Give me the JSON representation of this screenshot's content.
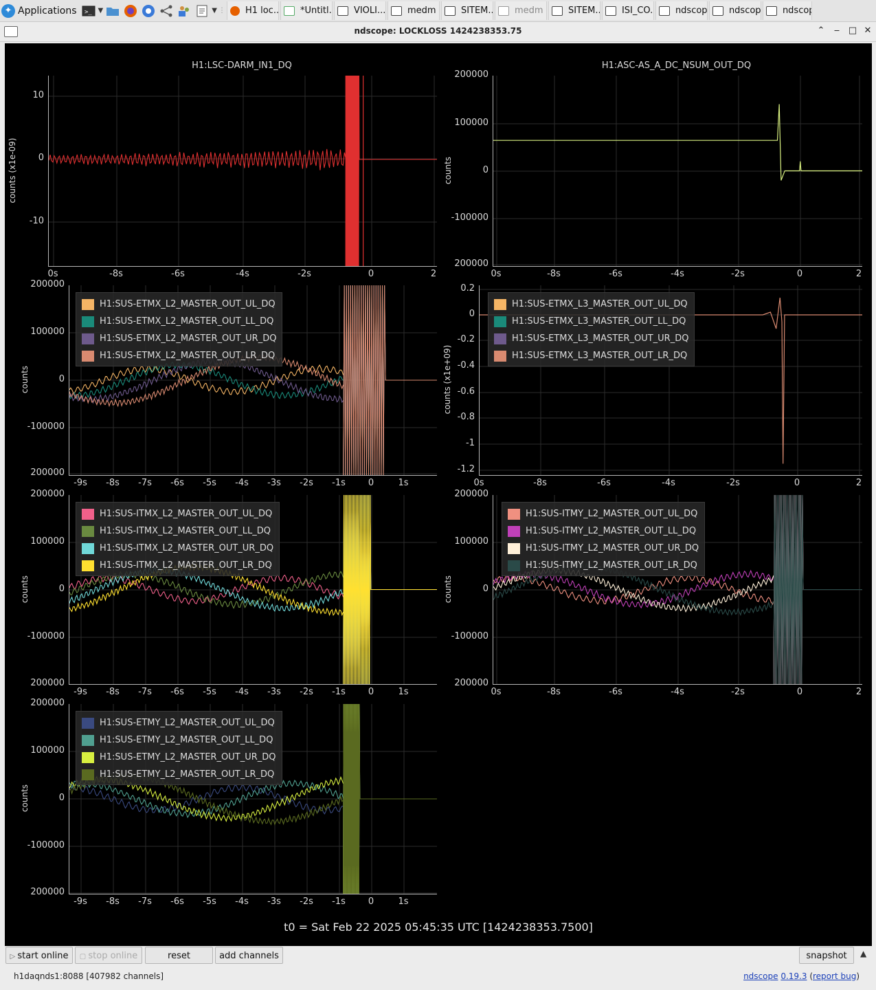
{
  "taskbar": {
    "apps_label": "Applications",
    "tasks": [
      "H1 loc...",
      "*Untitl...",
      "VIOLI...",
      "medm",
      "SITEM...",
      "medm",
      "SITEM...",
      "ISI_CO...",
      "ndscop...",
      "ndscop...",
      "ndscop"
    ]
  },
  "window": {
    "title": "ndscope: LOCKLOSS 1424238353.75"
  },
  "plots": [
    {
      "title": "H1:LSC-DARM_IN1_DQ",
      "ylabel": "counts (x1e-09)",
      "yticks": [
        "10",
        "0",
        "-10"
      ],
      "xticks": [
        "0s",
        "-8s",
        "-6s",
        "-4s",
        "-2s",
        "0",
        "2"
      ],
      "legend": []
    },
    {
      "title": "H1:ASC-AS_A_DC_NSUM_OUT_DQ",
      "ylabel": "counts",
      "yticks": [
        "200000",
        "100000",
        "0",
        "-100000",
        "200000"
      ],
      "xticks": [
        "0s",
        "-8s",
        "-6s",
        "-4s",
        "-2s",
        "0",
        "2"
      ],
      "legend": []
    },
    {
      "title": "",
      "ylabel": "counts",
      "yticks": [
        "200000",
        "100000",
        "0",
        "-100000",
        "200000"
      ],
      "xticks": [
        "-9s",
        "-8s",
        "-7s",
        "-6s",
        "-5s",
        "-4s",
        "-3s",
        "-2s",
        "-1s",
        "0",
        "1s"
      ],
      "legend": [
        {
          "label": "H1:SUS-ETMX_L2_MASTER_OUT_UL_DQ",
          "color": "#f5b565"
        },
        {
          "label": "H1:SUS-ETMX_L2_MASTER_OUT_LL_DQ",
          "color": "#1a8a7a"
        },
        {
          "label": "H1:SUS-ETMX_L2_MASTER_OUT_UR_DQ",
          "color": "#6e5a8c"
        },
        {
          "label": "H1:SUS-ETMX_L2_MASTER_OUT_LR_DQ",
          "color": "#d98a70"
        }
      ]
    },
    {
      "title": "",
      "ylabel": "counts (x1e+09)",
      "yticks": [
        "0.2",
        "0",
        "-0.2",
        "-0.4",
        "-0.6",
        "-0.8",
        "-1",
        "-1.2"
      ],
      "xticks": [
        "0s",
        "-8s",
        "-6s",
        "-4s",
        "-2s",
        "0",
        "2"
      ],
      "legend": [
        {
          "label": "H1:SUS-ETMX_L3_MASTER_OUT_UL_DQ",
          "color": "#f5b565"
        },
        {
          "label": "H1:SUS-ETMX_L3_MASTER_OUT_LL_DQ",
          "color": "#1a8a7a"
        },
        {
          "label": "H1:SUS-ETMX_L3_MASTER_OUT_UR_DQ",
          "color": "#6e5a8c"
        },
        {
          "label": "H1:SUS-ETMX_L3_MASTER_OUT_LR_DQ",
          "color": "#d98a70"
        }
      ]
    },
    {
      "title": "",
      "ylabel": "counts",
      "yticks": [
        "200000",
        "100000",
        "0",
        "-100000",
        "200000"
      ],
      "xticks": [
        "-9s",
        "-8s",
        "-7s",
        "-6s",
        "-5s",
        "-4s",
        "-3s",
        "-2s",
        "-1s",
        "0",
        "1s"
      ],
      "legend": [
        {
          "label": "H1:SUS-ITMX_L2_MASTER_OUT_UL_DQ",
          "color": "#f0608a"
        },
        {
          "label": "H1:SUS-ITMX_L2_MASTER_OUT_LL_DQ",
          "color": "#6a8a40"
        },
        {
          "label": "H1:SUS-ITMX_L2_MASTER_OUT_UR_DQ",
          "color": "#70d8d8"
        },
        {
          "label": "H1:SUS-ITMX_L2_MASTER_OUT_LR_DQ",
          "color": "#ffe030"
        }
      ]
    },
    {
      "title": "",
      "ylabel": "counts",
      "yticks": [
        "200000",
        "100000",
        "0",
        "-100000",
        "200000"
      ],
      "xticks": [
        "0s",
        "-8s",
        "-6s",
        "-4s",
        "-2s",
        "0",
        "2"
      ],
      "legend": [
        {
          "label": "H1:SUS-ITMY_L2_MASTER_OUT_UL_DQ",
          "color": "#f09080"
        },
        {
          "label": "H1:SUS-ITMY_L2_MASTER_OUT_LL_DQ",
          "color": "#c040b8"
        },
        {
          "label": "H1:SUS-ITMY_L2_MASTER_OUT_UR_DQ",
          "color": "#fff0d8"
        },
        {
          "label": "H1:SUS-ITMY_L2_MASTER_OUT_LR_DQ",
          "color": "#2a4a48"
        }
      ]
    },
    {
      "title": "",
      "ylabel": "counts",
      "yticks": [
        "200000",
        "100000",
        "0",
        "-100000",
        "200000"
      ],
      "xticks": [
        "-9s",
        "-8s",
        "-7s",
        "-6s",
        "-5s",
        "-4s",
        "-3s",
        "-2s",
        "-1s",
        "0",
        "1s"
      ],
      "legend": [
        {
          "label": "H1:SUS-ETMY_L2_MASTER_OUT_UL_DQ",
          "color": "#3a4a80"
        },
        {
          "label": "H1:SUS-ETMY_L2_MASTER_OUT_LL_DQ",
          "color": "#50a090"
        },
        {
          "label": "H1:SUS-ETMY_L2_MASTER_OUT_UR_DQ",
          "color": "#d8f040"
        },
        {
          "label": "H1:SUS-ETMY_L2_MASTER_OUT_LR_DQ",
          "color": "#5a6a20"
        }
      ]
    }
  ],
  "t0_label": "t0 = Sat Feb 22 2025 05:45:35 UTC [1424238353.7500]",
  "controls": {
    "start_online": "start online",
    "stop_online": "stop online",
    "reset": "reset",
    "add_channels": "add channels",
    "snapshot": "snapshot"
  },
  "status": {
    "server": "h1daqnds1:8088  [407982 channels]",
    "app_name": "ndscope",
    "version": "0.19.3",
    "report_bug": "report bug"
  },
  "colors": {
    "darm": "#e03030",
    "nsum": "#d8f080"
  }
}
